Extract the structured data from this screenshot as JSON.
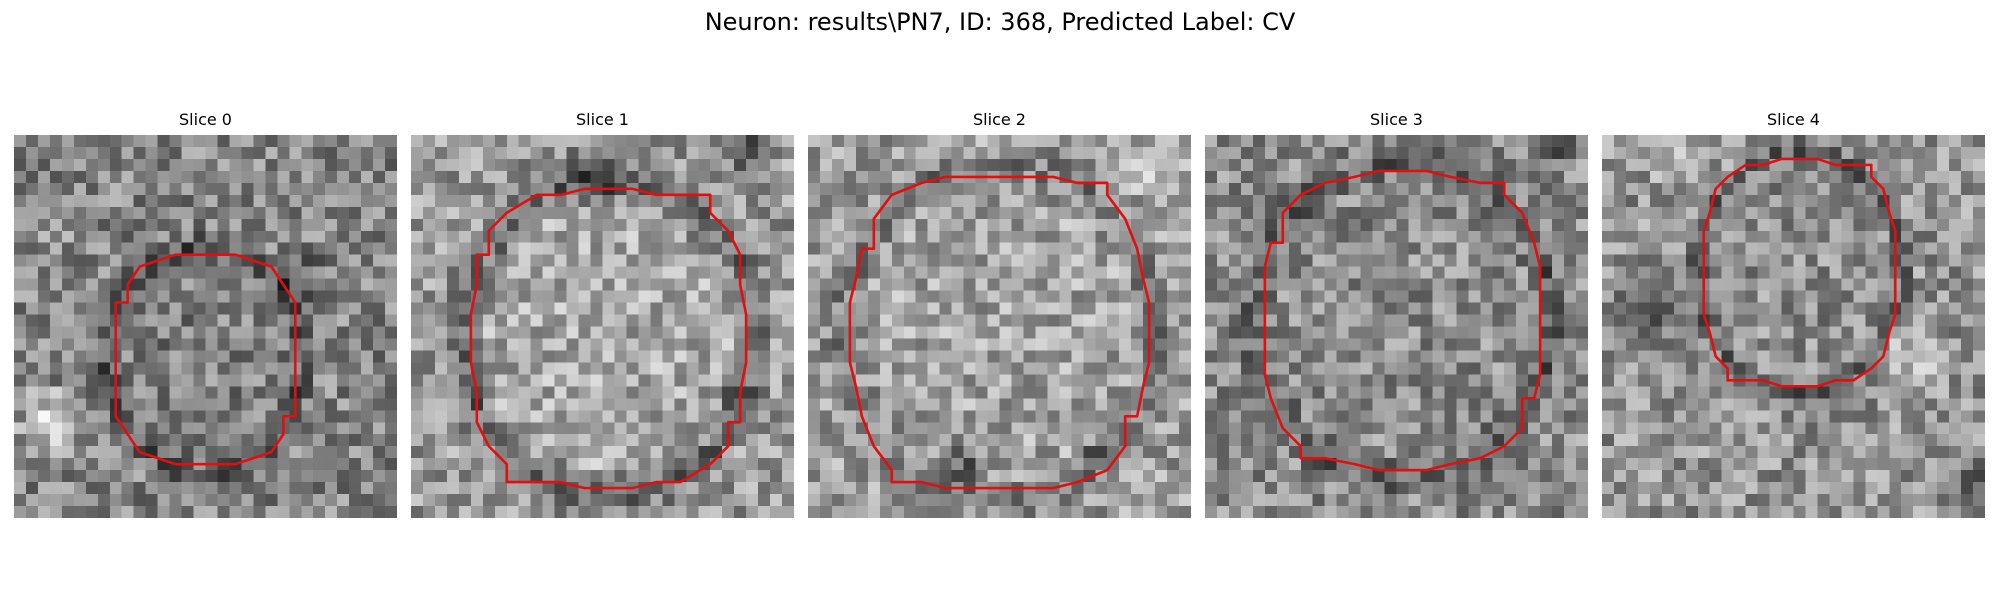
{
  "figure": {
    "title": "Neuron: results\\PN7, ID: 368, Predicted Label: CV"
  },
  "colors": {
    "contour": "#e01010",
    "background": "#ffffff",
    "image_colormap": "gray"
  },
  "panels": [
    {
      "title": "Slice 0"
    },
    {
      "title": "Slice 1"
    },
    {
      "title": "Slice 2"
    },
    {
      "title": "Slice 3"
    },
    {
      "title": "Slice 4"
    }
  ]
}
